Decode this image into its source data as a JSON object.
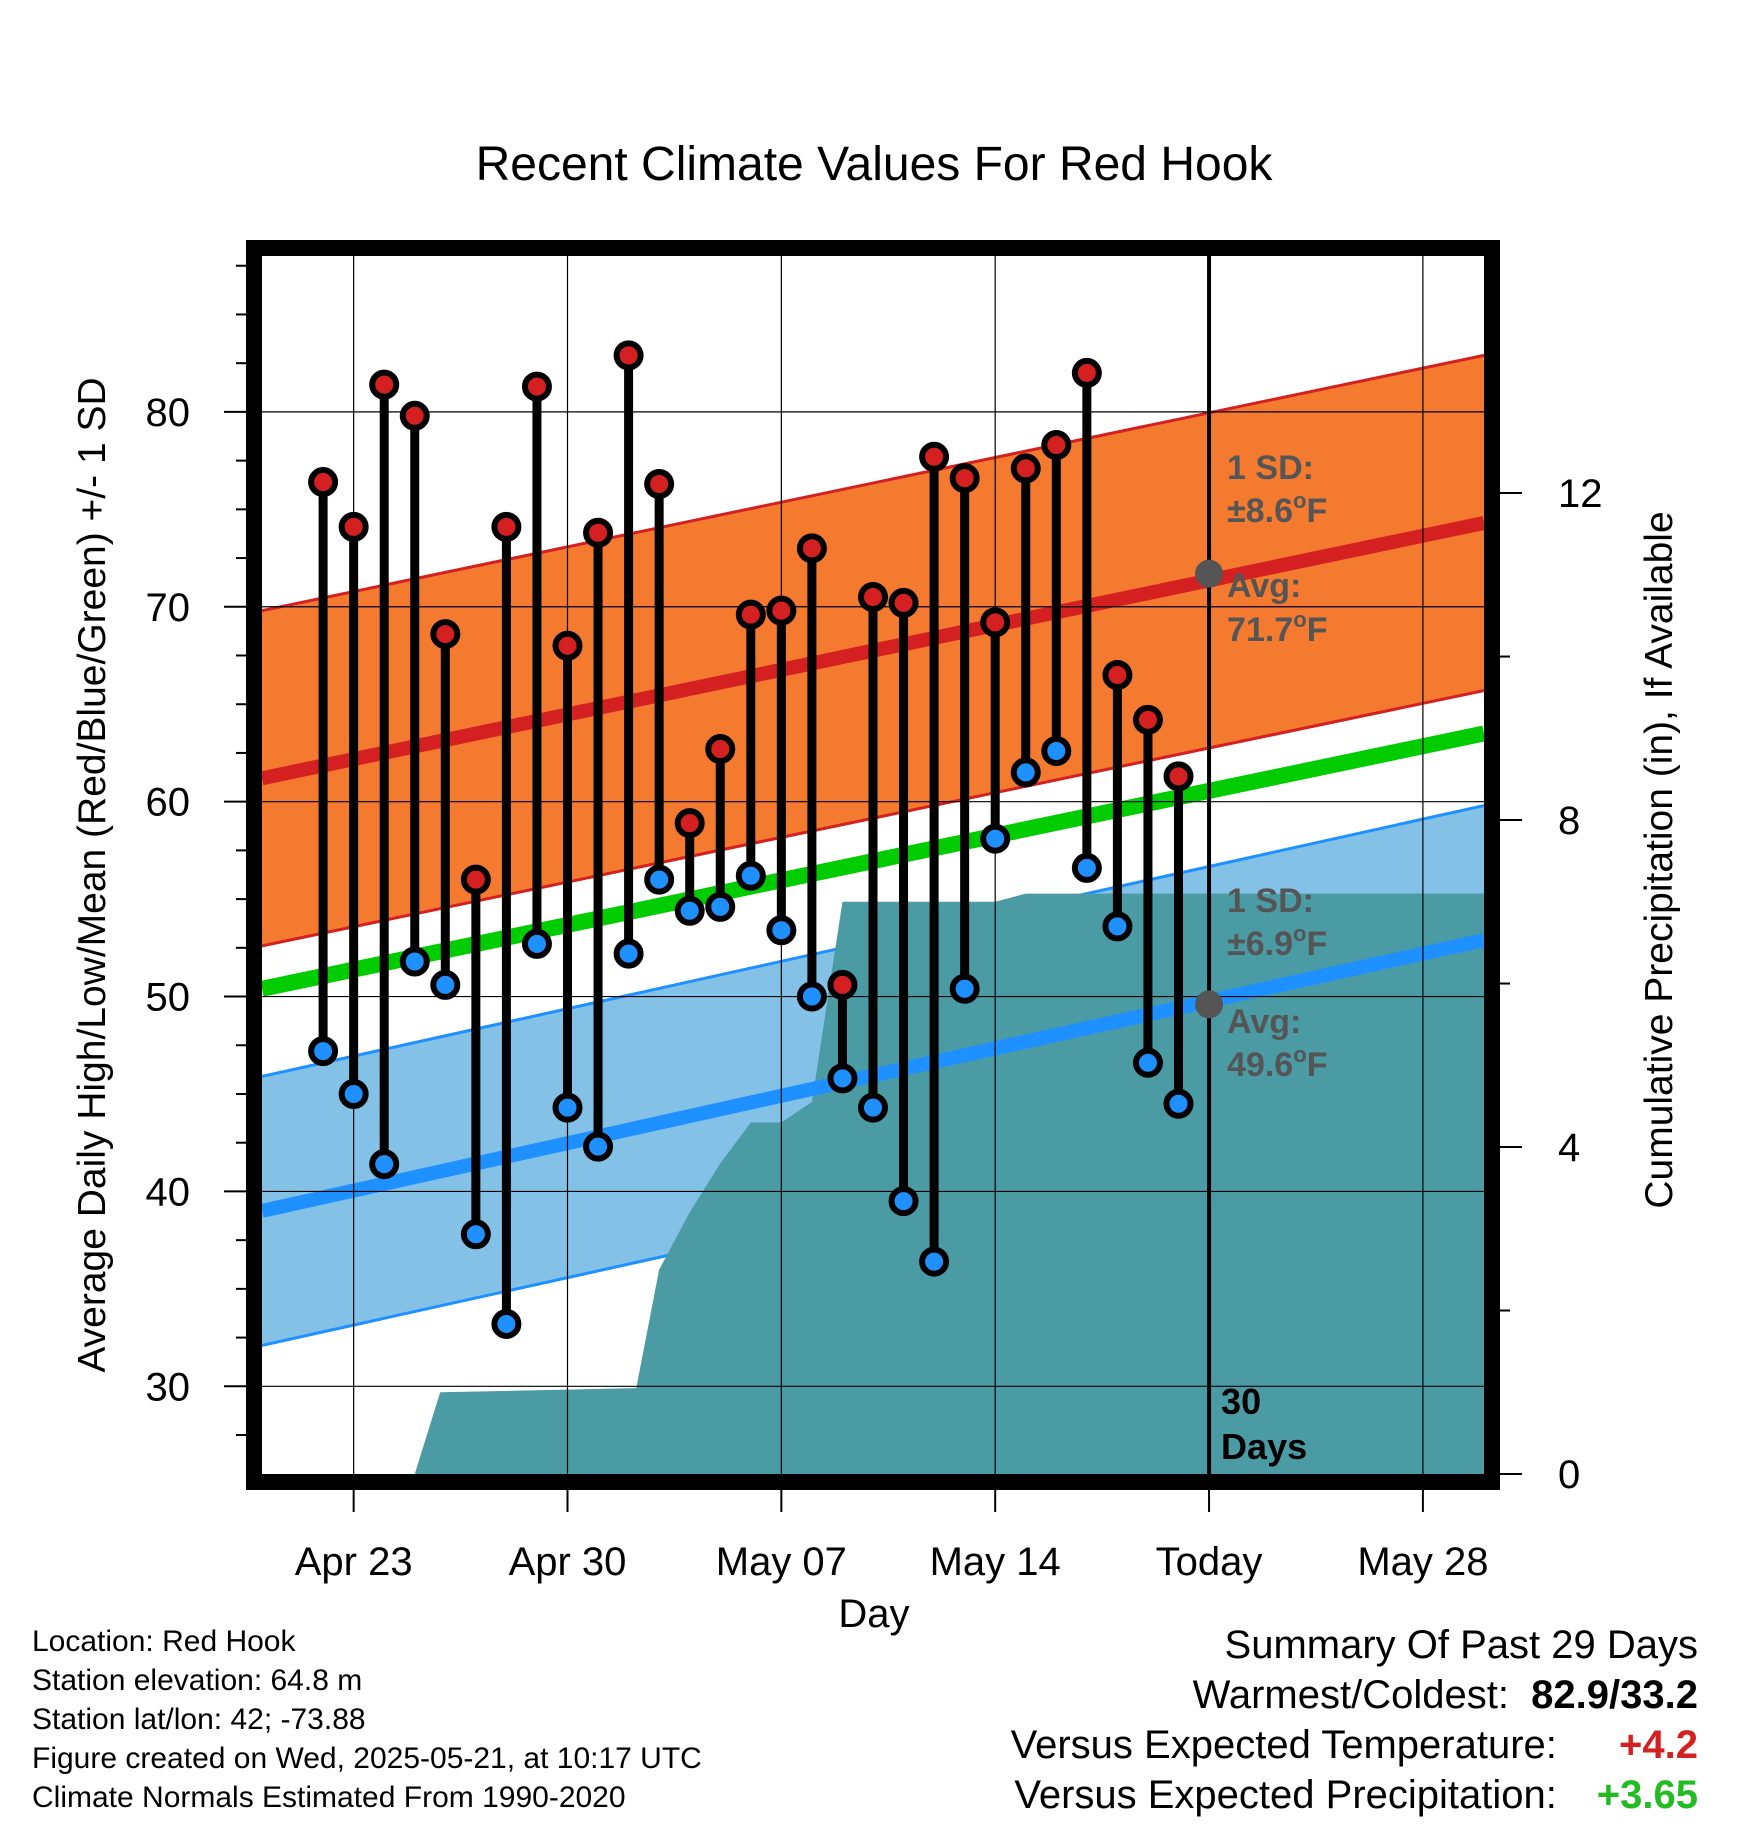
{
  "chart_data": {
    "type": "line",
    "title": "Recent Climate Values For Red Hook",
    "xlabel": "Day",
    "ylabel": "Average Daily High/Low/Mean (Red/Blue/Green) +/- 1 SD",
    "y2label": "Cumulative Precipitation (in), If Available",
    "x_ticks": [
      "Apr 23",
      "Apr 30",
      "May 07",
      "May 14",
      "Today",
      "May 28"
    ],
    "x_tick_dates": [
      "2025-04-23",
      "2025-04-30",
      "2025-05-07",
      "2025-05-14",
      "2025-05-21",
      "2025-05-28"
    ],
    "x_range": [
      "2025-04-20",
      "2025-05-30"
    ],
    "y_ticks": [
      "30",
      "40",
      "50",
      "60",
      "70",
      "80"
    ],
    "ylim": [
      25.5,
      88
    ],
    "y2_ticks": [
      "0",
      "4",
      "8",
      "12"
    ],
    "y2lim": [
      0,
      14.9
    ],
    "grid": true,
    "colors": {
      "high": "#d42020",
      "low": "#1e90ff",
      "mean": "#00cc00",
      "high_band": "#f47a2f",
      "low_band": "#83c2e6",
      "precip": "#4a9ba4",
      "avg_marker": "#555555",
      "annotation": "#555555"
    },
    "normals": {
      "dates": [
        "2025-04-20",
        "2025-05-30"
      ],
      "high_avg": [
        61.2,
        74.3
      ],
      "high_sd": 8.6,
      "low_avg": [
        39.0,
        52.9
      ],
      "low_sd": 6.9,
      "mean_avg": [
        50.4,
        63.5
      ]
    },
    "daily": {
      "dates": [
        "2025-04-22",
        "2025-04-23",
        "2025-04-24",
        "2025-04-25",
        "2025-04-26",
        "2025-04-27",
        "2025-04-28",
        "2025-04-29",
        "2025-04-30",
        "2025-05-01",
        "2025-05-02",
        "2025-05-03",
        "2025-05-04",
        "2025-05-05",
        "2025-05-06",
        "2025-05-07",
        "2025-05-08",
        "2025-05-09",
        "2025-05-10",
        "2025-05-11",
        "2025-05-12",
        "2025-05-13",
        "2025-05-14",
        "2025-05-15",
        "2025-05-16",
        "2025-05-17",
        "2025-05-18",
        "2025-05-19",
        "2025-05-20"
      ],
      "high": [
        76.4,
        74.1,
        81.4,
        79.8,
        68.6,
        56.0,
        74.1,
        81.3,
        68.0,
        73.8,
        82.9,
        76.3,
        58.9,
        62.7,
        69.6,
        69.8,
        73.0,
        50.6,
        70.5,
        70.2,
        77.7,
        76.6,
        69.2,
        77.1,
        78.3,
        82.0,
        66.5,
        64.2,
        61.3
      ],
      "low": [
        47.2,
        45.0,
        41.4,
        51.8,
        50.6,
        37.8,
        33.2,
        52.7,
        44.3,
        42.3,
        52.2,
        56.0,
        54.4,
        54.6,
        56.2,
        53.4,
        50.0,
        45.8,
        44.3,
        39.5,
        36.4,
        50.4,
        58.1,
        61.5,
        62.6,
        56.6,
        53.6,
        46.6,
        44.5
      ]
    },
    "precip": {
      "points": [
        [
          "2025-04-22",
          null
        ],
        [
          "2025-04-23",
          null
        ],
        [
          "2025-04-24",
          0
        ],
        [
          "2025-04-25",
          0.0
        ],
        [
          "2025-04-25T20:00",
          1.0
        ],
        [
          "2025-05-02T06:00",
          1.05
        ],
        [
          "2025-05-03",
          2.5
        ],
        [
          "2025-05-04",
          3.2
        ],
        [
          "2025-05-05",
          3.8
        ],
        [
          "2025-05-06",
          4.3
        ],
        [
          "2025-05-07",
          4.3
        ],
        [
          "2025-05-08",
          4.55
        ],
        [
          "2025-05-09",
          7.0
        ],
        [
          "2025-05-14",
          7.0
        ],
        [
          "2025-05-15",
          7.1
        ],
        [
          "2025-05-20",
          7.1
        ],
        [
          "2025-05-30",
          7.1
        ]
      ]
    },
    "annotations": {
      "high_sd_label": "1 SD:",
      "high_sd_value": "±8.6°F",
      "high_avg_label": "Avg:",
      "high_avg_value": "71.7°F",
      "high_avg_point": 71.7,
      "low_sd_label": "1 SD:",
      "low_sd_value": "±6.9°F",
      "low_avg_label": "Avg:",
      "low_avg_value": "49.6°F",
      "low_avg_point": 49.6,
      "days_label": "30",
      "days_label2": "Days"
    }
  },
  "footer": {
    "location": "Location: Red Hook",
    "elevation": "Station elevation: 64.8 m",
    "latlon": "Station lat/lon: 42; -73.88",
    "created": "Figure created on Wed, 2025-05-21, at 10:17 UTC",
    "normals": "Climate Normals Estimated From 1990-2020"
  },
  "summary": {
    "title": "Summary Of Past 29 Days",
    "warmest_label": "Warmest/Coldest:",
    "warmest_value": "82.9/33.2",
    "temp_label": "Versus Expected Temperature:",
    "temp_value": "+4.2",
    "temp_color": "#d42020",
    "precip_label": "Versus Expected Precipitation:",
    "precip_value": "+3.65",
    "precip_color": "#22bb22"
  }
}
